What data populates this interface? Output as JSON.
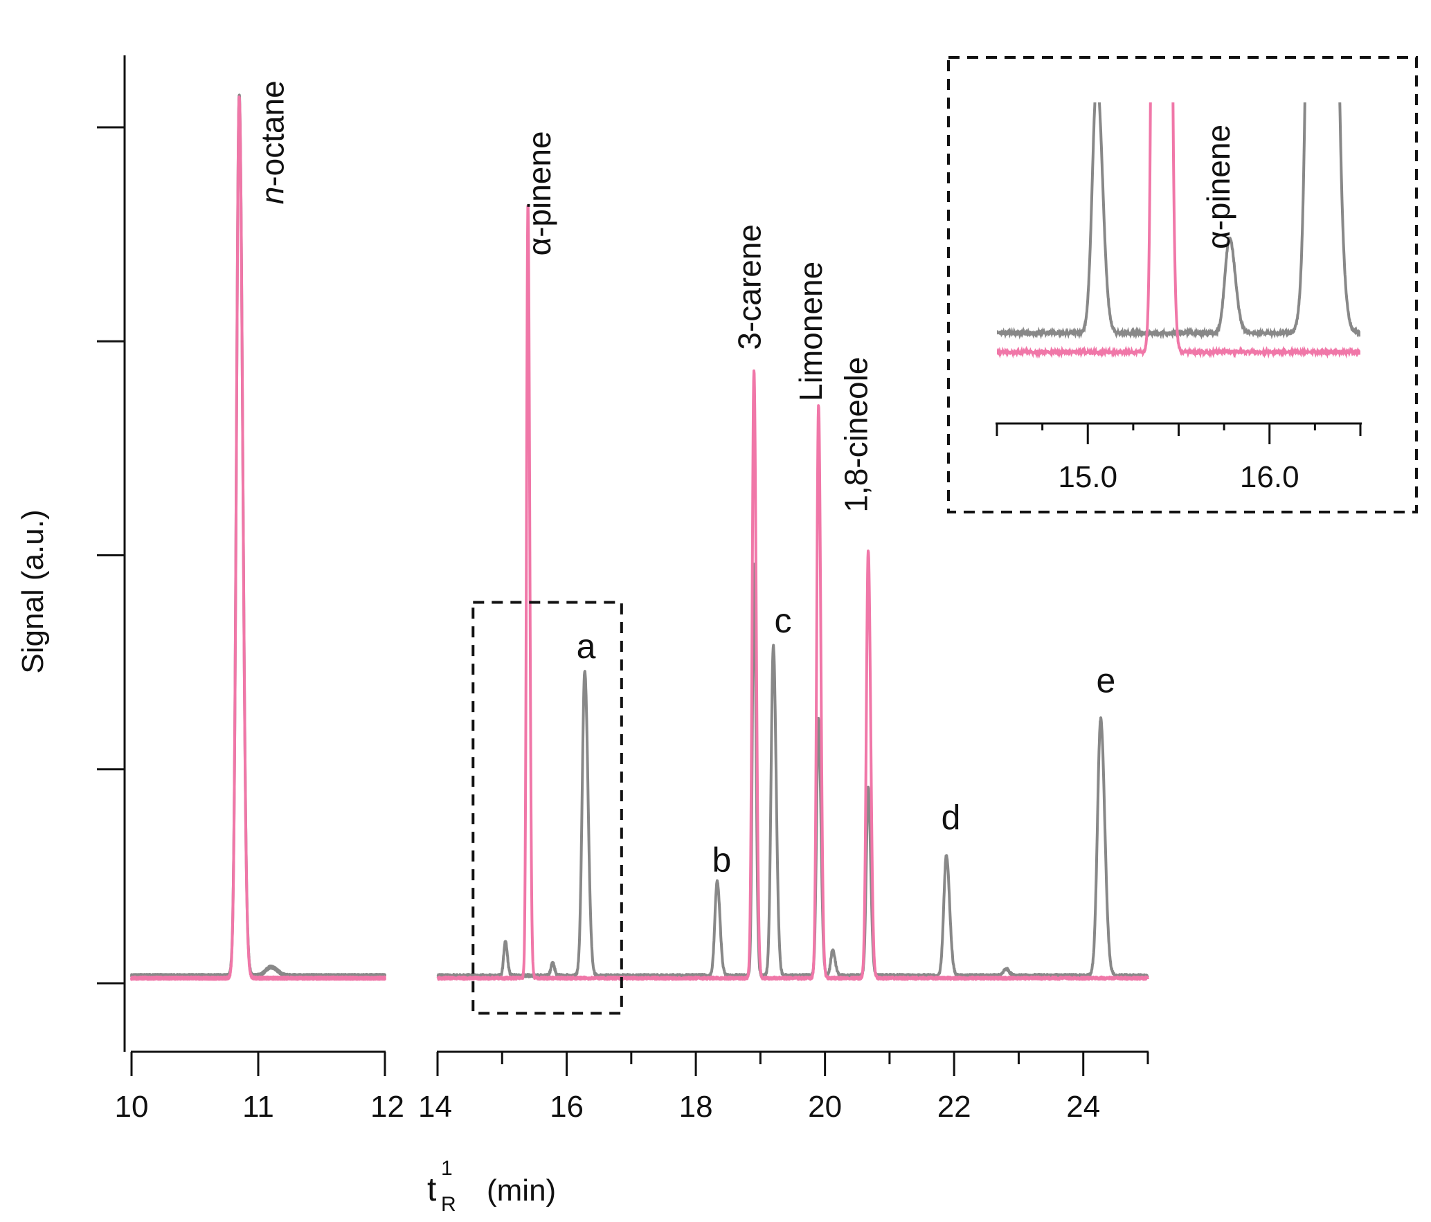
{
  "chart_data": {
    "type": "line",
    "xlabel_main": "t",
    "xlabel_superscript": "1",
    "xlabel_subscript": "R",
    "xlabel_unit": "(min)",
    "ylabel": "Signal (a.u.)",
    "x_segments": [
      {
        "xlim": [
          10,
          12
        ],
        "ticks": [
          10,
          11,
          12
        ]
      },
      {
        "xlim": [
          14,
          25
        ],
        "ticks": [
          14,
          16,
          18,
          20,
          22,
          24
        ]
      }
    ],
    "ylim": [
      -0.08,
      1.08
    ],
    "yticks": [
      0,
      0.25,
      0.5,
      0.75,
      1.0
    ],
    "colors": {
      "pink": "#f077a8",
      "gray": "#888888"
    },
    "series": [
      {
        "color_key": "pink",
        "baseline": 0.006,
        "peaks": [
          {
            "x": 10.85,
            "h": 1.03,
            "w": 0.022
          },
          {
            "x": 15.4,
            "h": 0.905,
            "w": 0.022
          },
          {
            "x": 18.9,
            "h": 0.71,
            "w": 0.028
          },
          {
            "x": 19.9,
            "h": 0.67,
            "w": 0.028
          },
          {
            "x": 20.67,
            "h": 0.5,
            "w": 0.03
          }
        ]
      },
      {
        "color_key": "gray",
        "baseline": 0.009,
        "peaks": [
          {
            "x": 10.85,
            "h": 1.03,
            "w": 0.022
          },
          {
            "x": 11.1,
            "h": 0.01,
            "w": 0.04
          },
          {
            "x": 15.05,
            "h": 0.04,
            "w": 0.025
          },
          {
            "x": 15.78,
            "h": 0.015,
            "w": 0.025
          },
          {
            "x": 16.28,
            "h": 0.355,
            "w": 0.04
          },
          {
            "x": 18.33,
            "h": 0.11,
            "w": 0.035
          },
          {
            "x": 18.9,
            "h": 0.48,
            "w": 0.025
          },
          {
            "x": 19.2,
            "h": 0.385,
            "w": 0.035
          },
          {
            "x": 19.9,
            "h": 0.3,
            "w": 0.03
          },
          {
            "x": 20.12,
            "h": 0.03,
            "w": 0.03
          },
          {
            "x": 20.67,
            "h": 0.22,
            "w": 0.03
          },
          {
            "x": 21.88,
            "h": 0.14,
            "w": 0.04
          },
          {
            "x": 22.8,
            "h": 0.008,
            "w": 0.04
          },
          {
            "x": 24.27,
            "h": 0.3,
            "w": 0.05
          }
        ]
      }
    ],
    "annotations": [
      {
        "text": "n",
        "text_rest": "-octane",
        "italic_prefix": true,
        "x": 11.2,
        "y": 0.91,
        "rotated": true
      },
      {
        "text": "α-pinene",
        "x": 15.75,
        "y": 0.85,
        "rotated": true
      },
      {
        "text": "3-carene",
        "x": 19.0,
        "y": 0.74,
        "rotated": true
      },
      {
        "text": "Limonene",
        "x": 19.95,
        "y": 0.68,
        "rotated": true
      },
      {
        "text": "1,8-cineole",
        "x": 20.65,
        "y": 0.55,
        "rotated": true
      },
      {
        "text": "a",
        "x": 16.3,
        "y": 0.38,
        "rotated": false
      },
      {
        "text": "b",
        "x": 18.4,
        "y": 0.13,
        "rotated": false
      },
      {
        "text": "c",
        "x": 19.35,
        "y": 0.41,
        "rotated": false
      },
      {
        "text": "d",
        "x": 21.95,
        "y": 0.18,
        "rotated": false
      },
      {
        "text": "e",
        "x": 24.35,
        "y": 0.34,
        "rotated": false
      }
    ],
    "zoom_box": {
      "xlim": [
        14.55,
        16.85
      ],
      "ylim": [
        -0.035,
        0.445
      ]
    },
    "inset": {
      "xlim": [
        14.5,
        16.5
      ],
      "ylim": [
        -0.005,
        0.045
      ],
      "tick_labels": [
        "15.0",
        "16.0"
      ],
      "tick_values": [
        15.0,
        16.0
      ],
      "minor_ticks": [
        14.5,
        15.5,
        16.5
      ],
      "annotation": "α-pinene"
    }
  }
}
